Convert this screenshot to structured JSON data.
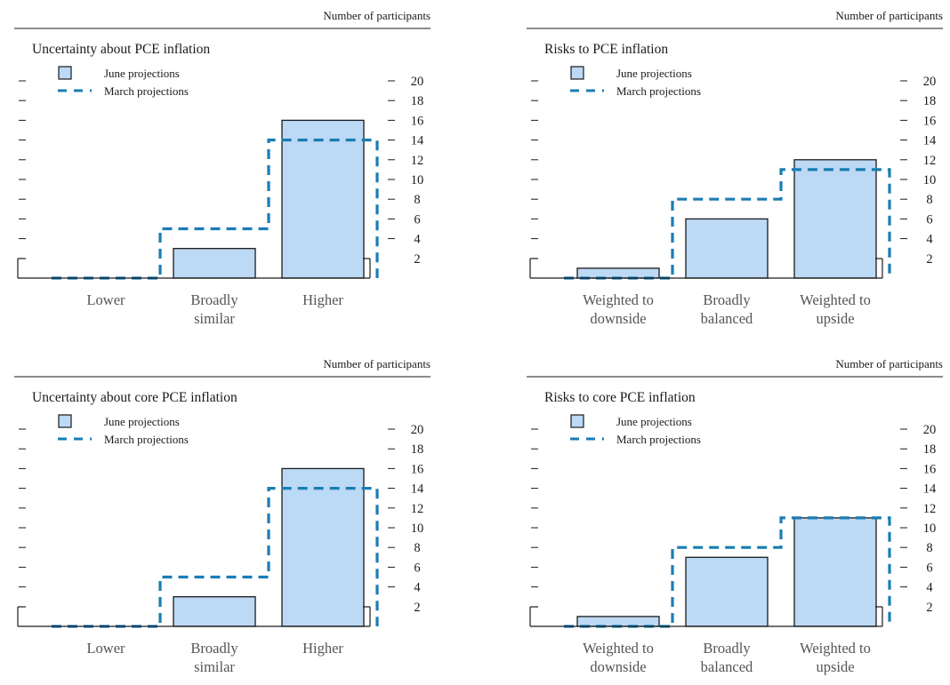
{
  "axis_caption": "Number of participants",
  "legend": {
    "june": "June projections",
    "march": "March projections"
  },
  "colors": {
    "bar_fill": "#bcd9f5",
    "bar_stroke": "#1a1a1a",
    "march_line": "#1a7db4",
    "axis": "#1a1a1a"
  },
  "chart_data": [
    {
      "type": "bar",
      "title": "Uncertainty about PCE inflation",
      "categories": [
        "Lower",
        "Broadly similar",
        "Higher"
      ],
      "category_lines": [
        [
          "Lower"
        ],
        [
          "Broadly",
          "similar"
        ],
        [
          "Higher"
        ]
      ],
      "series": [
        {
          "name": "June projections",
          "values": [
            0,
            3,
            16
          ]
        },
        {
          "name": "March projections",
          "values": [
            0,
            5,
            14
          ]
        }
      ],
      "ylabel": "Number of participants",
      "ylim": [
        0,
        20
      ],
      "yticks": [
        2,
        4,
        6,
        8,
        10,
        12,
        14,
        16,
        18,
        20
      ],
      "legend_position": "top-left"
    },
    {
      "type": "bar",
      "title": "Risks to PCE inflation",
      "categories": [
        "Weighted to downside",
        "Broadly balanced",
        "Weighted to upside"
      ],
      "category_lines": [
        [
          "Weighted to",
          "downside"
        ],
        [
          "Broadly",
          "balanced"
        ],
        [
          "Weighted to",
          "upside"
        ]
      ],
      "series": [
        {
          "name": "June projections",
          "values": [
            1,
            6,
            12
          ]
        },
        {
          "name": "March projections",
          "values": [
            0,
            8,
            11
          ]
        }
      ],
      "ylabel": "Number of participants",
      "ylim": [
        0,
        20
      ],
      "yticks": [
        2,
        4,
        6,
        8,
        10,
        12,
        14,
        16,
        18,
        20
      ],
      "legend_position": "top-left"
    },
    {
      "type": "bar",
      "title": "Uncertainty about core PCE inflation",
      "categories": [
        "Lower",
        "Broadly similar",
        "Higher"
      ],
      "category_lines": [
        [
          "Lower"
        ],
        [
          "Broadly",
          "similar"
        ],
        [
          "Higher"
        ]
      ],
      "series": [
        {
          "name": "June projections",
          "values": [
            0,
            3,
            16
          ]
        },
        {
          "name": "March projections",
          "values": [
            0,
            5,
            14
          ]
        }
      ],
      "ylabel": "Number of participants",
      "ylim": [
        0,
        20
      ],
      "yticks": [
        2,
        4,
        6,
        8,
        10,
        12,
        14,
        16,
        18,
        20
      ],
      "legend_position": "top-left"
    },
    {
      "type": "bar",
      "title": "Risks to core PCE inflation",
      "categories": [
        "Weighted to downside",
        "Broadly balanced",
        "Weighted to upside"
      ],
      "category_lines": [
        [
          "Weighted to",
          "downside"
        ],
        [
          "Broadly",
          "balanced"
        ],
        [
          "Weighted to",
          "upside"
        ]
      ],
      "series": [
        {
          "name": "June projections",
          "values": [
            1,
            7,
            11
          ]
        },
        {
          "name": "March projections",
          "values": [
            0,
            8,
            11
          ]
        }
      ],
      "ylabel": "Number of participants",
      "ylim": [
        0,
        20
      ],
      "yticks": [
        2,
        4,
        6,
        8,
        10,
        12,
        14,
        16,
        18,
        20
      ],
      "legend_position": "top-left"
    }
  ]
}
